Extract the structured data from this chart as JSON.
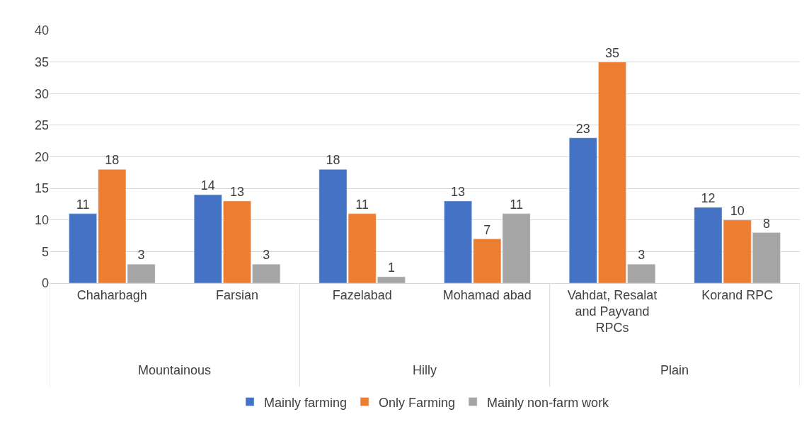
{
  "chart_data": {
    "type": "bar",
    "categories": [
      "Chaharbagh",
      "Farsian",
      "Fazelabad",
      "Mohamad abad",
      "Vahdat, Resalat and Payvand RPCs",
      "Korand RPC"
    ],
    "annotations": [
      "Mountainous",
      "Hilly",
      "Plain"
    ],
    "series": [
      {
        "name": "Mainly farming",
        "color": "#4472c4",
        "values": [
          11,
          14,
          18,
          13,
          23,
          12
        ]
      },
      {
        "name": "Only Farming",
        "color": "#ed7d31",
        "values": [
          18,
          13,
          11,
          7,
          35,
          10
        ]
      },
      {
        "name": "Mainly non-farm work",
        "color": "#a5a5a5",
        "values": [
          3,
          3,
          1,
          11,
          3,
          8
        ]
      }
    ],
    "ylim": [
      0,
      40
    ],
    "yticks": [
      0,
      5,
      10,
      15,
      20,
      25,
      30,
      35,
      40
    ],
    "grid": "y",
    "legend": "bottom",
    "data_labels": true
  }
}
